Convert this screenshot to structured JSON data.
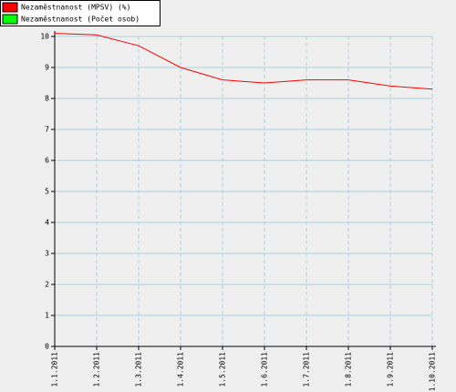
{
  "chart_data": {
    "type": "line",
    "categories": [
      "1.1.2011",
      "1.2.2011",
      "1.3.2011",
      "1.4.2011",
      "1.5.2011",
      "1.6.2011",
      "1.7.2011",
      "1.8.2011",
      "1.9.2011",
      "1.10.2011"
    ],
    "series": [
      {
        "name": "Nezaměstnanost (MPSV) (%)",
        "color": "#ff0000",
        "values": [
          10.1,
          10.05,
          9.7,
          9.0,
          8.6,
          8.5,
          8.6,
          8.6,
          8.4,
          8.3
        ]
      },
      {
        "name": "Nezaměstnanost (Počet osob)",
        "color": "#00ff00",
        "values": [
          null,
          null,
          null,
          null,
          null,
          null,
          null,
          null,
          null,
          null
        ]
      }
    ],
    "ylim": [
      0,
      10
    ],
    "yticks": [
      0,
      1,
      2,
      3,
      4,
      5,
      6,
      7,
      8,
      9,
      10
    ],
    "grid": true
  }
}
